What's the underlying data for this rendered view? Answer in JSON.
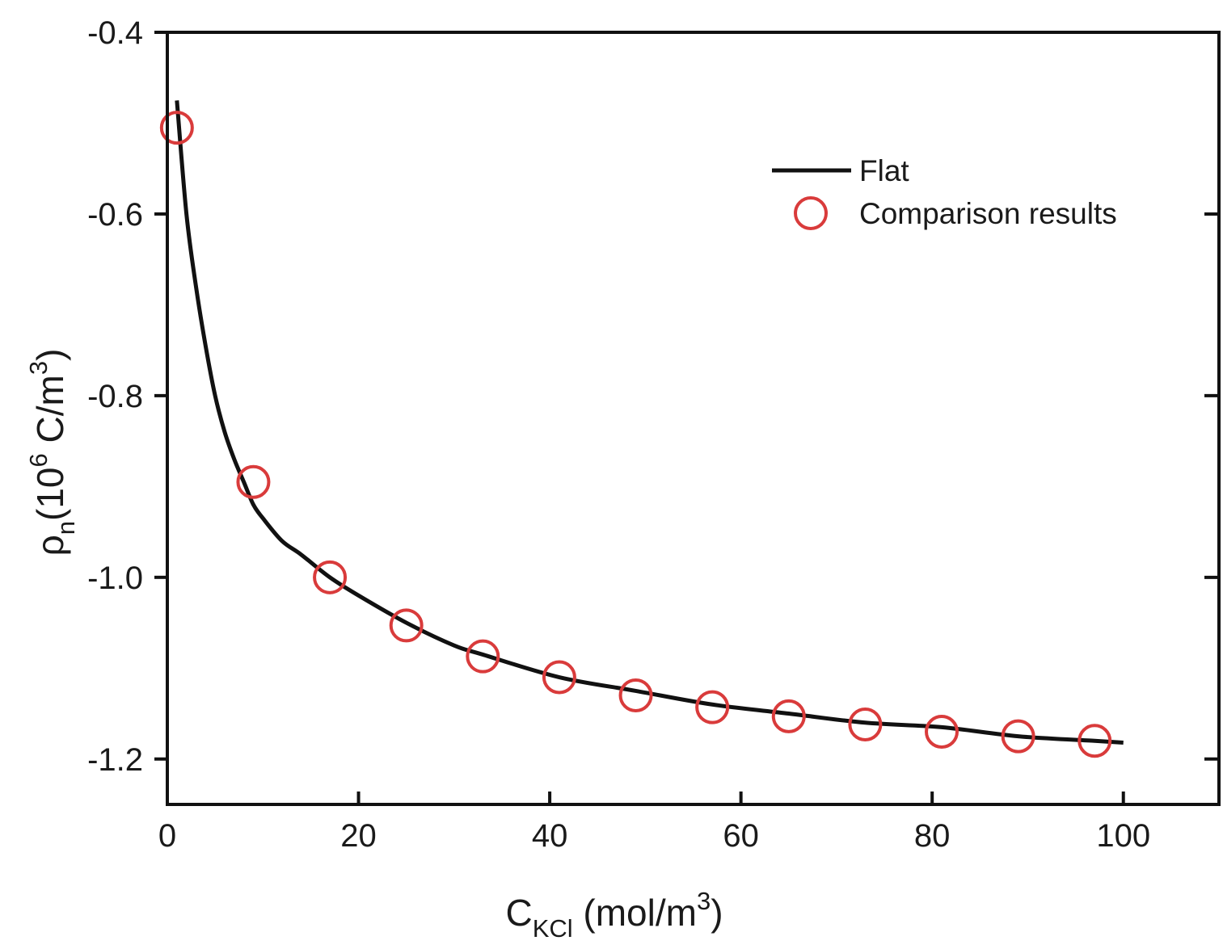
{
  "chart_data": {
    "type": "line+scatter",
    "xlabel": {
      "main": "C",
      "sub": "KCl",
      "units_open": " (mol/m",
      "units_sup": "3",
      "units_close": ")"
    },
    "ylabel": {
      "main": "ρ",
      "sub": "n",
      "units_open": "(10",
      "units_sup_pow": "6",
      "units_mid": " C/m",
      "units_sup": "3",
      "units_close": ")"
    },
    "xlim": [
      0,
      110
    ],
    "ylim": [
      -1.25,
      -0.4
    ],
    "xticks": [
      0,
      20,
      40,
      60,
      80,
      100
    ],
    "yticks": [
      -0.4,
      -0.6,
      -0.8,
      -1.0,
      -1.2
    ],
    "xtick_labels": [
      "0",
      "20",
      "40",
      "60",
      "80",
      "100"
    ],
    "ytick_labels": [
      "-0.4",
      "-0.6",
      "-0.8",
      "-1.0",
      "-1.2"
    ],
    "legend_position": "top-right",
    "series": [
      {
        "name": "Flat",
        "kind": "line",
        "color": "#111111",
        "x": [
          1,
          2,
          3,
          4,
          5,
          6,
          7,
          8,
          9,
          10,
          12,
          14,
          17,
          20,
          25,
          30,
          33,
          41,
          49,
          57,
          65,
          73,
          81,
          89,
          97,
          100
        ],
        "y": [
          -0.475,
          -0.6,
          -0.68,
          -0.745,
          -0.8,
          -0.84,
          -0.87,
          -0.895,
          -0.92,
          -0.935,
          -0.96,
          -0.975,
          -1.0,
          -1.02,
          -1.05,
          -1.075,
          -1.085,
          -1.11,
          -1.125,
          -1.14,
          -1.15,
          -1.16,
          -1.165,
          -1.175,
          -1.18,
          -1.182
        ]
      },
      {
        "name": "Comparison results",
        "kind": "scatter",
        "color": "#d93b3b",
        "x": [
          1,
          9,
          17,
          25,
          33,
          41,
          49,
          57,
          65,
          73,
          81,
          89,
          97
        ],
        "y": [
          -0.505,
          -0.895,
          -1.0,
          -1.053,
          -1.087,
          -1.11,
          -1.13,
          -1.143,
          -1.153,
          -1.162,
          -1.17,
          -1.175,
          -1.18
        ]
      }
    ]
  }
}
